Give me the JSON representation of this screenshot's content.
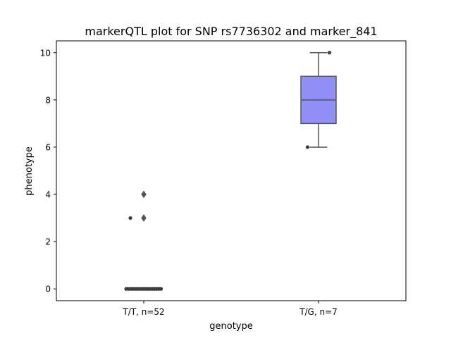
{
  "chart_data": {
    "type": "box",
    "title": "markerQTL plot for SNP rs7736302 and marker_841",
    "xlabel": "genotype",
    "ylabel": "phenotype",
    "ylim": [
      -0.5,
      10.5
    ],
    "yticks": [
      0,
      2,
      4,
      6,
      8,
      10
    ],
    "categories": [
      "T/T, n=52",
      "T/G, n=7"
    ],
    "box_color": "#9090f7",
    "line_color": "#555555",
    "point_color": "#3c3c3c",
    "grid": false,
    "groups": [
      {
        "label": "T/T, n=52",
        "box": {
          "q1": 0,
          "median": 0,
          "q3": 0,
          "whisker_low": 0,
          "whisker_high": 0
        },
        "outliers": [
          3,
          4
        ],
        "points": [
          3,
          0,
          0,
          0,
          0,
          0,
          0,
          0,
          0,
          0,
          0,
          0,
          0,
          0,
          0,
          0,
          0,
          0
        ]
      },
      {
        "label": "T/G, n=7",
        "box": {
          "q1": 7,
          "median": 8,
          "q3": 9,
          "whisker_low": 6,
          "whisker_high": 10
        },
        "outliers": [],
        "points": [
          6,
          10
        ]
      }
    ]
  }
}
